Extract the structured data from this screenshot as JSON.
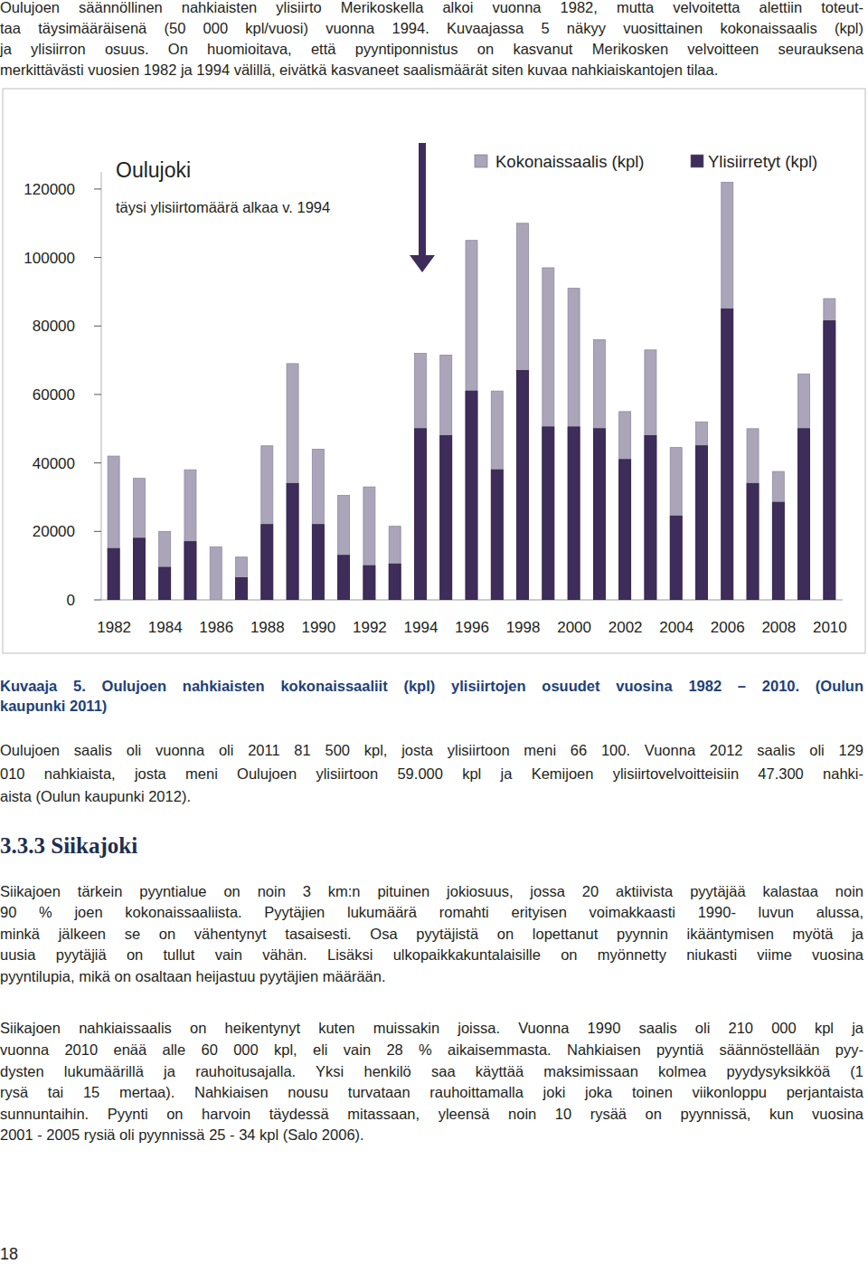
{
  "intro": [
    "Oulujoen säännöllinen nahkiaisten ylisiirto Merikoskella alkoi vuonna 1982, mutta velvoitetta alettiin toteut-",
    "taa täysimääräisenä (50 000 kpl/vuosi) vuonna 1994. Kuvaajassa 5 näkyy vuosittainen kokonaissaalis (kpl)",
    "ja ylisiirron osuus. On huomioitava, että pyyntiponnistus on kasvanut Merikosken velvoitteen seurauksena",
    "merkittävästi vuosien 1982 ja 1994 välillä, eivätkä kasvaneet saalismäärät siten kuvaa nahkiaiskantojen tilaa."
  ],
  "chart_data": {
    "type": "bar",
    "title": "Oulujoki",
    "annotations": [
      "täysi ylisiirtomäärä alkaa v. 1994"
    ],
    "categories": [
      "1982",
      null,
      "1984",
      null,
      "1986",
      null,
      "1988",
      null,
      "1990",
      null,
      "1992",
      null,
      "1994",
      null,
      "1996",
      null,
      "1998",
      null,
      "2000",
      null,
      "2002",
      null,
      "2004",
      null,
      "2006",
      null,
      "2008",
      null,
      "2010"
    ],
    "series": [
      {
        "name": "Kokonaissaalis (kpl)",
        "color": "#aaa5b9",
        "values": [
          42000,
          35500,
          20000,
          38000,
          15500,
          12500,
          45000,
          69000,
          44000,
          30500,
          33000,
          21500,
          72000,
          71500,
          105000,
          61000,
          110000,
          97000,
          91000,
          76000,
          55000,
          73000,
          44500,
          52000,
          122000,
          50000,
          37500,
          66000,
          88000
        ]
      },
      {
        "name": "Ylisiirretyt (kpl)",
        "color": "#3e2d5a",
        "values": [
          15000,
          18000,
          9500,
          17000,
          0,
          6500,
          22000,
          34000,
          22000,
          13000,
          10000,
          10500,
          50000,
          48000,
          61000,
          38000,
          67000,
          50500,
          50500,
          50000,
          41000,
          48000,
          24500,
          45000,
          85000,
          34000,
          28500,
          50000,
          81500
        ]
      }
    ],
    "ylim": [
      0,
      125000
    ],
    "yticks": [
      0,
      20000,
      40000,
      60000,
      80000,
      100000,
      120000
    ],
    "grid": false,
    "legend": "top-right"
  },
  "caption": [
    "Kuvaaja 5. Oulujoen nahkiaisten kokonaissaaliit (kpl) ylisiirtojen osuudet vuosina 1982 – 2010. (Oulun",
    "kaupunki 2011)"
  ],
  "paragraph_2011": [
    "Oulujoen saalis oli vuonna oli 2011 81 500 kpl, josta ylisiirtoon meni 66 100. Vuonna 2012 saalis oli 129",
    "010 nahkiaista, josta meni Oulujoen ylisiirtoon 59.000 kpl ja Kemijoen ylisiirtovelvoitteisiin 47.300 nahki-",
    "aista (Oulun kaupunki 2012)."
  ],
  "heading": "3.3.3 Siikajoki",
  "section_paragraphs": [
    [
      "Siikajoen tärkein pyyntialue on noin 3 km:n pituinen jokiosuus, jossa 20 aktiivista pyytäjää kalastaa noin",
      "90 % joen kokonaissaaliista. Pyytäjien lukumäärä romahti erityisen voimakkaasti 1990- luvun alussa,",
      "minkä jälkeen se on vähentynyt tasaisesti. Osa pyytäjistä on lopettanut pyynnin ikääntymisen myötä ja",
      "uusia pyytäjiä on tullut vain vähän. Lisäksi ulkopaikkakuntalaisille on myönnetty niukasti viime vuosina",
      "pyyntilupia, mikä on osaltaan heijastuu pyytäjien määrään."
    ],
    [
      "Siikajoen nahkiaissaalis on heikentynyt kuten muissakin joissa. Vuonna 1990 saalis oli 210 000 kpl ja",
      "vuonna 2010 enää alle 60 000 kpl, eli vain 28 % aikaisemmasta. Nahkiaisen pyyntiä säännöstellään pyy-",
      "dysten lukumäärillä ja rauhoitusajalla. Yksi henkilö saa käyttää maksimissaan kolmea pyydysyksikköä (1",
      "rysä tai 15 mertaa). Nahkiaisen nousu turvataan rauhoittamalla joki joka toinen viikonloppu perjantaista",
      "sunnuntaihin. Pyynti on harvoin täydessä mitassaan, yleensä noin 10 rysää on pyynnissä, kun vuosina",
      "2001 - 2005 rysiä oli pyynnissä 25 - 34 kpl (Salo 2006)."
    ]
  ],
  "page_number": "18"
}
